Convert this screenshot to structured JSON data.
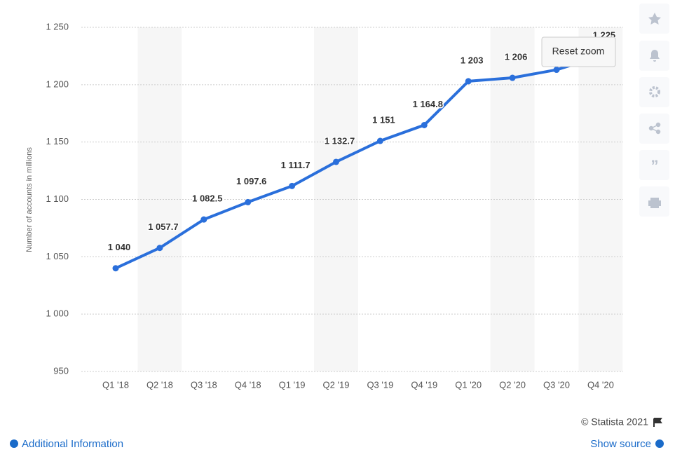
{
  "chart_data": {
    "type": "line",
    "y_axis_label": "Number of accounts in millions",
    "categories": [
      "Q1 '18",
      "Q2 '18",
      "Q3 '18",
      "Q4 '18",
      "Q1 '19",
      "Q2 '19",
      "Q3 '19",
      "Q4 '19",
      "Q1 '20",
      "Q2 '20",
      "Q3 '20",
      "Q4 '20"
    ],
    "series": [
      {
        "name": "Accounts",
        "color": "#2a6fdb",
        "values": [
          1040,
          1057.7,
          1082.5,
          1097.6,
          1111.7,
          1132.7,
          1151,
          1164.8,
          1203,
          1206,
          1213,
          1225
        ],
        "value_labels": [
          "1 040",
          "1 057.7",
          "1 082.5",
          "1 097.6",
          "1 111.7",
          "1 132.7",
          "1 151",
          "1 164.8",
          "1 203",
          "1 206",
          null,
          "1 225"
        ]
      }
    ],
    "ylim": [
      950,
      1250
    ],
    "yticks": [
      950,
      {
        "value": 1000,
        "label": "1 000"
      },
      {
        "value": 1050,
        "label": "1 050"
      },
      {
        "value": 1100,
        "label": "1 100"
      },
      {
        "value": 1150,
        "label": "1 150"
      },
      {
        "value": 1200,
        "label": "1 200"
      },
      {
        "value": 1250,
        "label": "1 250"
      }
    ],
    "grid": true
  },
  "reset_zoom": "Reset zoom",
  "footer": {
    "copyright": "© Statista 2021",
    "additional_information": "Additional Information",
    "show_source": "Show source"
  }
}
